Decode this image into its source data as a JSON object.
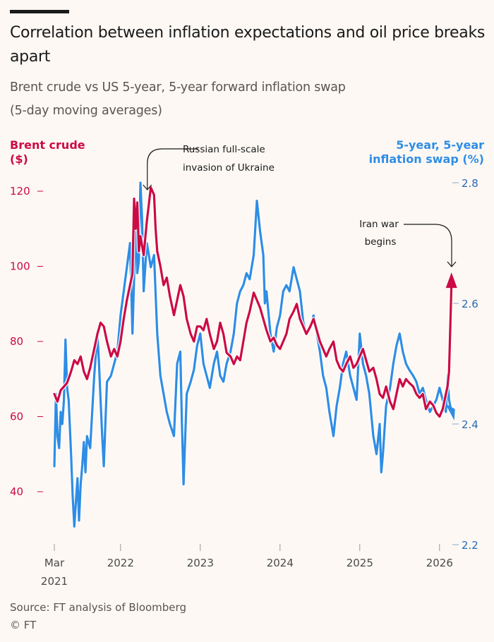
{
  "header": {
    "title": "Correlation between inflation expectations and oil price breaks apart",
    "subtitle_line1": "Brent crude vs US 5-year, 5-year forward inflation swap",
    "subtitle_line2": "(5-day moving averages)"
  },
  "axis_labels": {
    "left_line1": "Brent crude",
    "left_line2": "($)",
    "right_line1": "5-year,  5-year",
    "right_line2": "inflation swap (%)"
  },
  "footer": {
    "source": "Source: FT analysis of Bloomberg",
    "copyright": "© FT"
  },
  "colors": {
    "brent": "#cc0a44",
    "swap": "#2f8de4",
    "background": "#fdf8f4",
    "text": "#1a1a1a",
    "muted": "#5a5452"
  },
  "chart_data": {
    "type": "line",
    "title": "Correlation between inflation expectations and oil price breaks apart",
    "subtitle": "Brent crude vs US 5-year, 5-year forward inflation swap (5-day moving averages)",
    "xlabel": "",
    "x_range": [
      2021.17,
      2026.25
    ],
    "x_ticks": [
      {
        "value": 2021.17,
        "line1": "Mar",
        "line2": "2021"
      },
      {
        "value": 2022.0,
        "line1": "2022",
        "line2": ""
      },
      {
        "value": 2023.0,
        "line1": "2023",
        "line2": ""
      },
      {
        "value": 2024.0,
        "line1": "2024",
        "line2": ""
      },
      {
        "value": 2025.0,
        "line1": "2025",
        "line2": ""
      },
      {
        "value": 2026.0,
        "line1": "2026",
        "line2": ""
      }
    ],
    "y_left": {
      "label": "Brent crude ($)",
      "range": [
        30,
        125
      ],
      "ticks": [
        40,
        60,
        80,
        100,
        120
      ]
    },
    "y_right": {
      "label": "5-year, 5-year inflation swap (%)",
      "range": [
        2.2,
        2.8
      ],
      "ticks": [
        2.2,
        2.4,
        2.6,
        2.8
      ]
    },
    "grid": false,
    "series": [
      {
        "name": "Brent crude",
        "axis": "left",
        "x": [
          2021.17,
          2021.21,
          2021.25,
          2021.29,
          2021.33,
          2021.38,
          2021.42,
          2021.46,
          2021.5,
          2021.54,
          2021.58,
          2021.62,
          2021.67,
          2021.71,
          2021.75,
          2021.79,
          2021.83,
          2021.88,
          2021.92,
          2021.96,
          2022.0,
          2022.04,
          2022.08,
          2022.12,
          2022.15,
          2022.17,
          2022.19,
          2022.21,
          2022.23,
          2022.25,
          2022.29,
          2022.33,
          2022.38,
          2022.42,
          2022.44,
          2022.46,
          2022.5,
          2022.54,
          2022.58,
          2022.62,
          2022.67,
          2022.71,
          2022.75,
          2022.79,
          2022.83,
          2022.88,
          2022.92,
          2022.96,
          2023.0,
          2023.04,
          2023.08,
          2023.12,
          2023.17,
          2023.21,
          2023.25,
          2023.29,
          2023.33,
          2023.38,
          2023.42,
          2023.46,
          2023.5,
          2023.54,
          2023.58,
          2023.62,
          2023.67,
          2023.71,
          2023.75,
          2023.79,
          2023.83,
          2023.88,
          2023.92,
          2023.96,
          2024.0,
          2024.04,
          2024.08,
          2024.12,
          2024.17,
          2024.21,
          2024.25,
          2024.29,
          2024.33,
          2024.38,
          2024.42,
          2024.46,
          2024.5,
          2024.54,
          2024.58,
          2024.62,
          2024.67,
          2024.71,
          2024.75,
          2024.79,
          2024.83,
          2024.88,
          2024.92,
          2024.96,
          2025.0,
          2025.04,
          2025.08,
          2025.12,
          2025.17,
          2025.21,
          2025.25,
          2025.29,
          2025.33,
          2025.38,
          2025.42,
          2025.46,
          2025.5,
          2025.54,
          2025.58,
          2025.62,
          2025.67,
          2025.71,
          2025.75,
          2025.79,
          2025.83,
          2025.88,
          2025.92,
          2025.96,
          2026.0,
          2026.04,
          2026.08,
          2026.1,
          2026.12,
          2026.15
        ],
        "values": [
          66,
          64,
          67,
          68,
          69,
          72,
          75,
          74,
          76,
          72,
          70,
          73,
          78,
          82,
          85,
          84,
          80,
          76,
          78,
          76,
          80,
          86,
          91,
          95,
          98,
          118,
          110,
          117,
          104,
          108,
          103,
          112,
          121,
          119,
          110,
          104,
          100,
          95,
          97,
          92,
          87,
          91,
          95,
          92,
          86,
          82,
          80,
          84,
          84,
          83,
          86,
          82,
          78,
          80,
          85,
          82,
          77,
          76,
          74,
          76,
          75,
          80,
          85,
          88,
          93,
          91,
          89,
          86,
          83,
          80,
          81,
          79,
          78,
          80,
          82,
          86,
          88,
          90,
          86,
          84,
          82,
          84,
          86,
          83,
          80,
          78,
          76,
          78,
          80,
          75,
          73,
          72,
          74,
          76,
          73,
          74,
          76,
          78,
          75,
          72,
          73,
          70,
          66,
          65,
          68,
          64,
          62,
          66,
          70,
          68,
          70,
          69,
          68,
          66,
          65,
          66,
          62,
          64,
          63,
          61,
          60,
          62,
          66,
          68,
          72,
          95
        ]
      },
      {
        "name": "5-year, 5-year inflation swap",
        "axis": "right",
        "x": [
          2021.17,
          2021.19,
          2021.21,
          2021.23,
          2021.25,
          2021.27,
          2021.29,
          2021.31,
          2021.33,
          2021.35,
          2021.38,
          2021.4,
          2021.42,
          2021.44,
          2021.46,
          2021.48,
          2021.5,
          2021.52,
          2021.54,
          2021.56,
          2021.58,
          2021.62,
          2021.67,
          2021.71,
          2021.73,
          2021.75,
          2021.77,
          2021.79,
          2021.81,
          2021.83,
          2021.88,
          2021.92,
          2021.96,
          2022.0,
          2022.04,
          2022.08,
          2022.12,
          2022.15,
          2022.17,
          2022.19,
          2022.21,
          2022.23,
          2022.25,
          2022.27,
          2022.29,
          2022.33,
          2022.38,
          2022.42,
          2022.46,
          2022.5,
          2022.54,
          2022.58,
          2022.62,
          2022.67,
          2022.71,
          2022.75,
          2022.77,
          2022.79,
          2022.83,
          2022.88,
          2022.92,
          2022.96,
          2023.0,
          2023.04,
          2023.08,
          2023.12,
          2023.17,
          2023.21,
          2023.25,
          2023.29,
          2023.33,
          2023.38,
          2023.42,
          2023.46,
          2023.5,
          2023.54,
          2023.58,
          2023.62,
          2023.67,
          2023.71,
          2023.75,
          2023.79,
          2023.81,
          2023.83,
          2023.88,
          2023.92,
          2023.96,
          2024.0,
          2024.04,
          2024.08,
          2024.12,
          2024.17,
          2024.21,
          2024.25,
          2024.29,
          2024.33,
          2024.38,
          2024.42,
          2024.46,
          2024.5,
          2024.54,
          2024.58,
          2024.62,
          2024.67,
          2024.71,
          2024.75,
          2024.79,
          2024.83,
          2024.88,
          2024.92,
          2024.96,
          2025.0,
          2025.04,
          2025.08,
          2025.12,
          2025.17,
          2025.21,
          2025.25,
          2025.27,
          2025.29,
          2025.33,
          2025.38,
          2025.42,
          2025.46,
          2025.5,
          2025.54,
          2025.58,
          2025.62,
          2025.67,
          2025.71,
          2025.75,
          2025.79,
          2025.83,
          2025.88,
          2025.92,
          2025.96,
          2026.0,
          2026.04,
          2026.08,
          2026.1,
          2026.12,
          2026.15
        ],
        "values": [
          2.33,
          2.45,
          2.38,
          2.36,
          2.42,
          2.4,
          2.44,
          2.54,
          2.46,
          2.44,
          2.35,
          2.28,
          2.23,
          2.27,
          2.31,
          2.24,
          2.3,
          2.33,
          2.37,
          2.32,
          2.38,
          2.36,
          2.48,
          2.55,
          2.5,
          2.44,
          2.38,
          2.33,
          2.4,
          2.47,
          2.48,
          2.5,
          2.52,
          2.58,
          2.62,
          2.66,
          2.7,
          2.55,
          2.64,
          2.75,
          2.65,
          2.67,
          2.8,
          2.74,
          2.62,
          2.7,
          2.66,
          2.68,
          2.55,
          2.48,
          2.45,
          2.42,
          2.4,
          2.38,
          2.5,
          2.52,
          2.4,
          2.3,
          2.45,
          2.47,
          2.49,
          2.53,
          2.55,
          2.5,
          2.48,
          2.46,
          2.5,
          2.52,
          2.48,
          2.47,
          2.5,
          2.52,
          2.55,
          2.6,
          2.62,
          2.63,
          2.65,
          2.64,
          2.68,
          2.77,
          2.72,
          2.68,
          2.6,
          2.62,
          2.55,
          2.52,
          2.56,
          2.58,
          2.62,
          2.63,
          2.62,
          2.66,
          2.64,
          2.62,
          2.57,
          2.55,
          2.56,
          2.58,
          2.55,
          2.52,
          2.48,
          2.46,
          2.42,
          2.38,
          2.43,
          2.46,
          2.5,
          2.52,
          2.48,
          2.46,
          2.44,
          2.55,
          2.5,
          2.48,
          2.45,
          2.38,
          2.35,
          2.4,
          2.32,
          2.35,
          2.43,
          2.46,
          2.5,
          2.53,
          2.55,
          2.52,
          2.5,
          2.49,
          2.48,
          2.47,
          2.45,
          2.46,
          2.44,
          2.42,
          2.43,
          2.44,
          2.46,
          2.44,
          2.42,
          2.48,
          2.44,
          2.42
        ]
      }
    ],
    "annotations": [
      {
        "text_line1": "Russian full-scale",
        "text_line2": "invasion of Ukraine",
        "x": 2022.15,
        "target_value": 120,
        "axis": "left"
      },
      {
        "text_line1": "Iran war",
        "text_line2": "begins",
        "x": 2026.15,
        "target_value": 96,
        "axis": "left"
      }
    ]
  }
}
